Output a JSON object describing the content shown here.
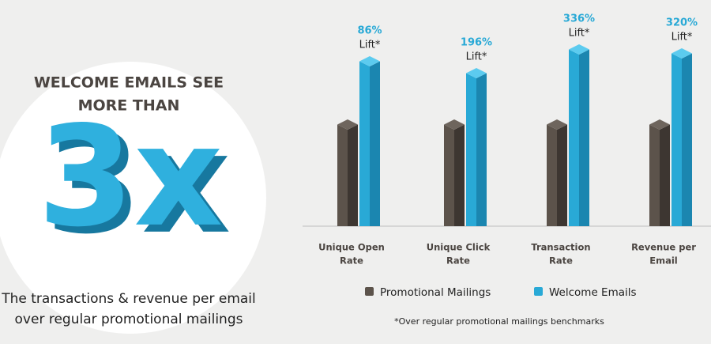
{
  "headline": [
    "WELCOME EMAILS SEE",
    "MORE THAN"
  ],
  "big_number": "3x",
  "description": [
    "The transactions & revenue per email",
    "over regular promotional mailings"
  ],
  "chart_data": {
    "type": "bar3d",
    "categories": [
      [
        "Unique Open",
        "Rate"
      ],
      [
        "Unique Click",
        "Rate"
      ],
      [
        "Transaction",
        "Rate"
      ],
      [
        "Revenue per",
        "Email"
      ]
    ],
    "series": [
      {
        "name": "Promotional Mailings",
        "color": "#5c534b",
        "values": [
          135,
          135,
          135,
          135
        ]
      },
      {
        "name": "Welcome Emails",
        "color": "#29a9d6",
        "values": [
          215,
          200,
          230,
          225
        ]
      }
    ],
    "ylim": [
      0,
      250
    ],
    "lift_values": [
      "86%",
      "196%",
      "336%",
      "320%"
    ],
    "lift_label": "Lift*",
    "footnote": "*Over regular promotional mailings benchmarks"
  }
}
